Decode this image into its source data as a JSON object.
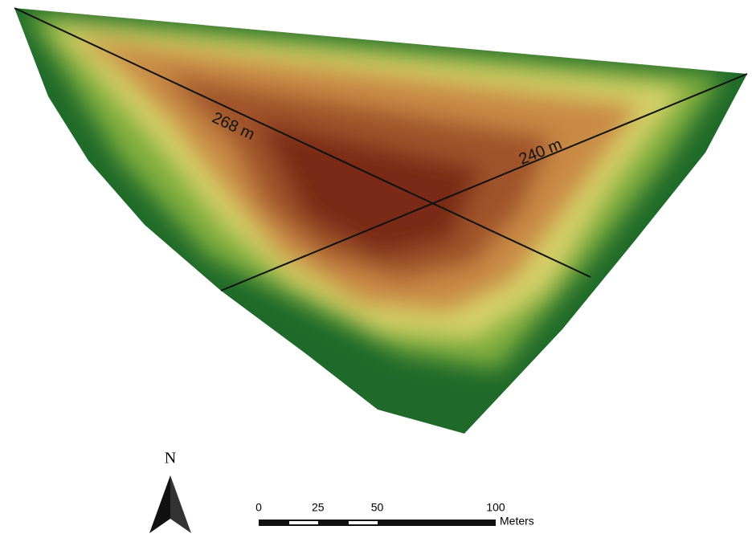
{
  "map": {
    "transects": [
      {
        "label": "268 m"
      },
      {
        "label": "240 m"
      }
    ],
    "north_arrow": {
      "label": "N"
    },
    "scale_bar": {
      "ticks": [
        "0",
        "25",
        "50",
        "100"
      ],
      "unit": "Meters"
    }
  }
}
